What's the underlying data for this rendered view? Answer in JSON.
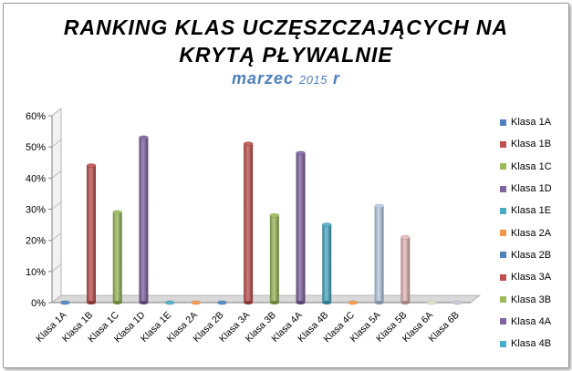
{
  "title_line1": "RANKING KLAS UCZĘSZCZAJĄCYCH NA",
  "title_line2": "KRYTĄ PŁYWALNIE",
  "subtitle_main": "marzec",
  "subtitle_year": "2015",
  "subtitle_end": "r",
  "chart_data": {
    "type": "bar",
    "title": "RANKING KLAS UCZĘSZCZAJĄCYCH NA KRYTĄ PŁYWALNIE marzec 2015 r",
    "categories": [
      "Klasa 1A",
      "Klasa 1B",
      "Klasa 1C",
      "Klasa 1D",
      "Klasa 1E",
      "Klasa 2A",
      "Klasa 2B",
      "Klasa 3A",
      "Klasa 3B",
      "Klasa 4A",
      "Klasa 4B",
      "Klasa 4C",
      "Klasa 5A",
      "Klasa 5B",
      "Klasa 6A",
      "Klasa 6B"
    ],
    "values": [
      0,
      0.44,
      0.29,
      0.53,
      0,
      0,
      0,
      0.51,
      0.28,
      0.48,
      0.25,
      0,
      0.31,
      0.21,
      0,
      0
    ],
    "colors": [
      "#4f81bd",
      "#c0504d",
      "#9bbb59",
      "#8064a2",
      "#4bacc6",
      "#f79646",
      "#4f81bd",
      "#c0504d",
      "#9bbb59",
      "#8064a2",
      "#4bacc6",
      "#f79646",
      "#b9cde5",
      "#e6b9b8",
      "#d7e4bd",
      "#ccc1da"
    ],
    "yticks": [
      "0%",
      "10%",
      "20%",
      "30%",
      "40%",
      "50%",
      "60%"
    ],
    "ylim": [
      0,
      0.6
    ],
    "legend": [
      "Klasa 1A",
      "Klasa 1B",
      "Klasa 1C",
      "Klasa 1D",
      "Klasa 1E",
      "Klasa 2A",
      "Klasa 2B",
      "Klasa 3A",
      "Klasa 3B",
      "Klasa 4A",
      "Klasa 4B"
    ],
    "legend_position": "right",
    "grid": false
  }
}
